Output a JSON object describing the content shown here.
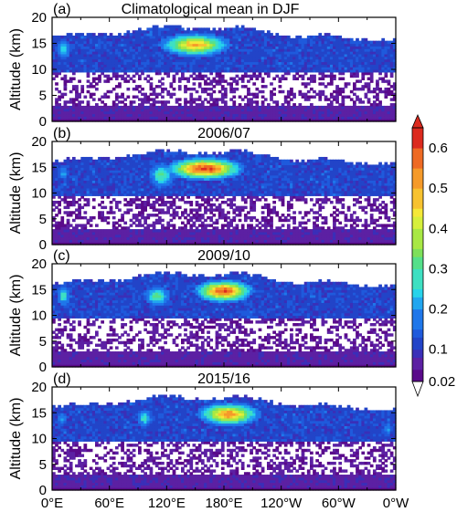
{
  "chart_data": [
    {
      "type": "heatmap",
      "panel_label": "(a)",
      "title": "Climatological mean in DJF",
      "ylabel": "Altitude (km)",
      "ylim": [
        0,
        20
      ],
      "yticks": [
        0,
        5,
        10,
        15,
        20
      ],
      "xlim": [
        0,
        360
      ],
      "features": [
        {
          "lon": 150,
          "alt": 14.8,
          "lon_width": 38,
          "alt_width": 2.3,
          "value": 0.5
        },
        {
          "lon": 12,
          "alt": 14.0,
          "lon_width": 8,
          "alt_width": 1.8,
          "value": 0.27
        }
      ]
    },
    {
      "type": "heatmap",
      "panel_label": "(b)",
      "title": "2006/07",
      "ylabel": "Altitude (km)",
      "ylim": [
        0,
        20
      ],
      "yticks": [
        0,
        5,
        10,
        15,
        20
      ],
      "xlim": [
        0,
        360
      ],
      "features": [
        {
          "lon": 160,
          "alt": 14.8,
          "lon_width": 42,
          "alt_width": 2.3,
          "value": 0.62
        },
        {
          "lon": 115,
          "alt": 13.5,
          "lon_width": 14,
          "alt_width": 2.5,
          "value": 0.32
        },
        {
          "lon": 12,
          "alt": 14.0,
          "lon_width": 6,
          "alt_width": 1.3,
          "value": 0.22
        }
      ]
    },
    {
      "type": "heatmap",
      "panel_label": "(c)",
      "title": "2009/10",
      "ylabel": "Altitude (km)",
      "ylim": [
        0,
        20
      ],
      "yticks": [
        0,
        5,
        10,
        15,
        20
      ],
      "xlim": [
        0,
        360
      ],
      "features": [
        {
          "lon": 180,
          "alt": 14.8,
          "lon_width": 32,
          "alt_width": 2.3,
          "value": 0.6
        },
        {
          "lon": 110,
          "alt": 13.8,
          "lon_width": 14,
          "alt_width": 2.0,
          "value": 0.33
        },
        {
          "lon": 12,
          "alt": 13.8,
          "lon_width": 7,
          "alt_width": 2.0,
          "value": 0.3
        }
      ]
    },
    {
      "type": "heatmap",
      "panel_label": "(d)",
      "title": "2015/16",
      "ylabel": "Altitude (km)",
      "ylim": [
        0,
        20
      ],
      "yticks": [
        0,
        5,
        10,
        15,
        20
      ],
      "xlim": [
        0,
        360
      ],
      "features": [
        {
          "lon": 185,
          "alt": 14.8,
          "lon_width": 34,
          "alt_width": 2.3,
          "value": 0.54
        },
        {
          "lon": 97,
          "alt": 14.0,
          "lon_width": 8,
          "alt_width": 1.8,
          "value": 0.28
        },
        {
          "lon": 10,
          "alt": 14.0,
          "lon_width": 5,
          "alt_width": 1.3,
          "value": 0.22
        },
        {
          "lon": 352,
          "alt": 12.0,
          "lon_width": 5,
          "alt_width": 1.5,
          "value": 0.2
        }
      ]
    }
  ],
  "x_ticks": [
    "0°E",
    "60°E",
    "120°E",
    "180°E",
    "120°W",
    "60°W",
    "0°W"
  ],
  "colorbar": {
    "tick_labels": [
      "0.6",
      "0.5",
      "0.4",
      "0.3",
      "0.2",
      "0.1",
      "0.02"
    ],
    "levels": [
      0.02,
      0.05,
      0.08,
      0.1,
      0.13,
      0.15,
      0.2,
      0.23,
      0.25,
      0.3,
      0.33,
      0.35,
      0.4,
      0.43,
      0.45,
      0.5,
      0.55,
      0.6,
      0.65
    ],
    "colors": [
      "#5a0a8a",
      "#5c20a3",
      "#3a2fb8",
      "#2244c8",
      "#1f5adc",
      "#1f77ea",
      "#21a6f0",
      "#27d3ea",
      "#3ee0c2",
      "#55e08a",
      "#7ee05a",
      "#a8e844",
      "#d6ef3c",
      "#f5e838",
      "#f7c230",
      "#f59a2a",
      "#ee6a24",
      "#dc2a1e"
    ],
    "background": "#ffffff"
  }
}
